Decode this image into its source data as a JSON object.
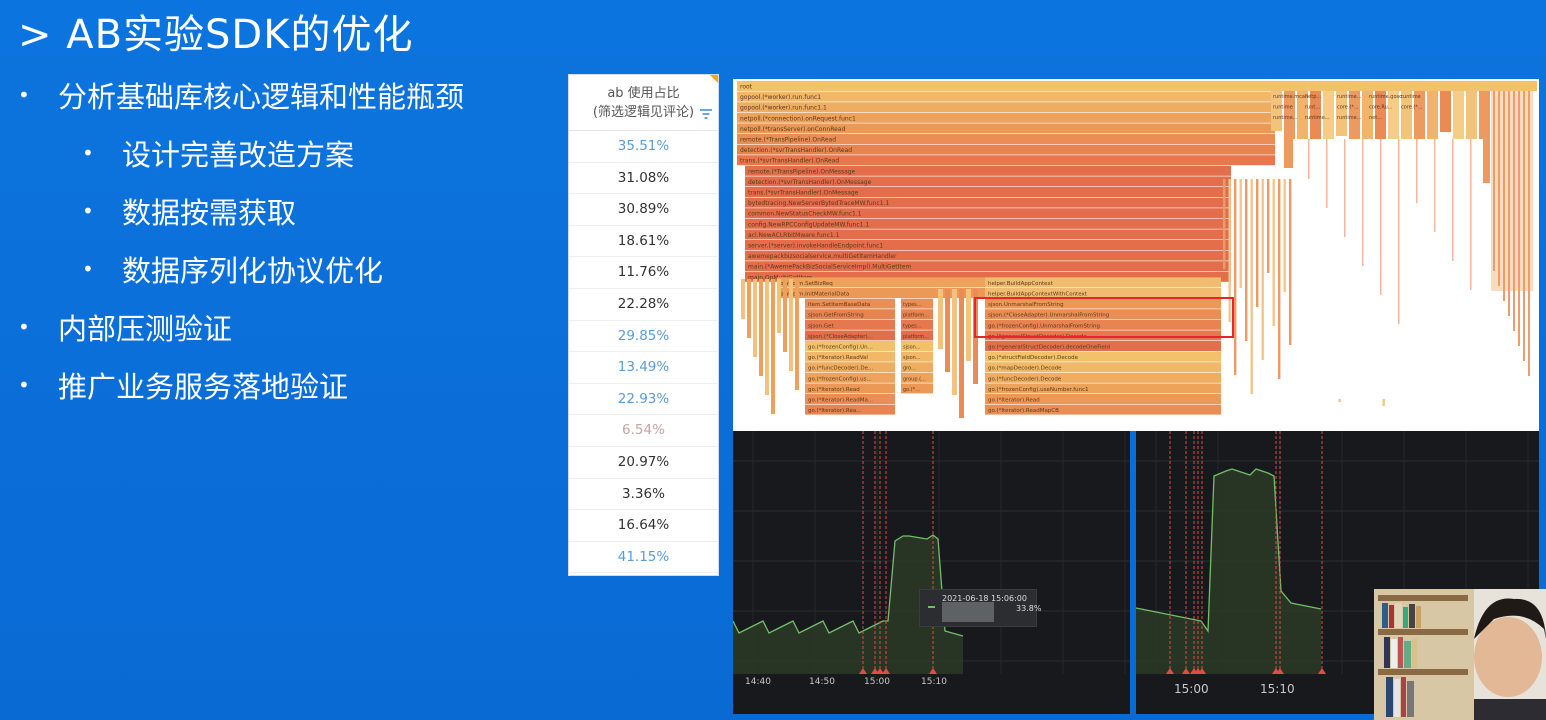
{
  "slide": {
    "title": "> AB实验SDK的优化",
    "bullets": [
      {
        "text": "分析基础库核心逻辑和性能瓶颈",
        "level": 1
      },
      {
        "text": "设计完善改造方案",
        "level": 2
      },
      {
        "text": "数据按需获取",
        "level": 2
      },
      {
        "text": "数据序列化协议优化",
        "level": 2
      },
      {
        "text": "内部压测验证",
        "level": 1
      },
      {
        "text": "推广业务服务落地验证",
        "level": 1
      }
    ],
    "bullet_marker": "•"
  },
  "pct_table": {
    "header_line1": "ab 使用占比",
    "header_line2": "(筛选逻辑见评论)",
    "rows": [
      {
        "value": "35.51%",
        "color": "blue"
      },
      {
        "value": "31.08%",
        "color": "dark"
      },
      {
        "value": "30.89%",
        "color": "dark"
      },
      {
        "value": "18.61%",
        "color": "dark"
      },
      {
        "value": "11.76%",
        "color": "dark"
      },
      {
        "value": "22.28%",
        "color": "dark"
      },
      {
        "value": "29.85%",
        "color": "blue"
      },
      {
        "value": "13.49%",
        "color": "blue"
      },
      {
        "value": "22.93%",
        "color": "blue"
      },
      {
        "value": "6.54%",
        "color": "red"
      },
      {
        "value": "20.97%",
        "color": "dark"
      },
      {
        "value": "3.36%",
        "color": "dark"
      },
      {
        "value": "16.64%",
        "color": "dark"
      },
      {
        "value": "41.15%",
        "color": "blue"
      }
    ]
  },
  "flame_graph": {
    "frames": [
      "root",
      "gopool.(*worker).run.func1",
      "gopool.(*worker).run.func1.1",
      "netpoll.(*connection).onRequest.func1",
      "netpoll.(*transServer).onConnRead",
      "remote.(*TransPipeline).OnRead",
      "detection.(*svrTransHandler).OnRead",
      "trans.(*svrTransHandler).OnRead",
      "remote.(*TransPipeline).OnMessage",
      "detection.(*svrTransHandler).OnMessage",
      "trans.(*svrTransHandler).OnMessage",
      "bytedtracing.NewServerBytedTraceMW.func1.1",
      "common.NewStatusCheckMW.func1.1",
      "config.NewRPCConfigUpdateMW.func1.1",
      "acl.NewACLRbitMware.func1.1",
      "server.(*server).invokeHandleEndpoint.func1",
      "awemepackbizsocialservice.multiGetItemHandler",
      "main.(*AwemePackBizSocialServiceImpl).MultiGetItem",
      "main.OnMultiGetItem"
    ],
    "frames_lower": [
      "platform.SetBizReq",
      "platform.InitMaterialData",
      "item.SetItemBaseData",
      "sjson.GetFromString",
      "sjson.Get",
      "sjson.(*CloseAdapter)...",
      "go.(*frozenConfig).Un...",
      "go.(*Iterator).ReadVal",
      "go.(*funcDecoder).De...",
      "go.(*frozenConfig).us...",
      "go.(*Iterator).Read",
      "go.(*Iterator).ReadMa...",
      "go.(*Iterator).Rea..."
    ],
    "frames_right": [
      "helper.BuildAppContext",
      "helper.BuildAppContextWithContext",
      "sjson.UnmarshalFromString",
      "sjson.(*CloseAdapter).UnmarshalFromString",
      "go.(*frozenConfig).UnmarshalFromString",
      "go.(*generalStructDecoder).Decode",
      "go.(*generalStructDecoder).decodeOneField",
      "go.(*structFieldDecoder).Decode",
      "go.(*mapDecoder).Decode",
      "go.(*funcDecoder).Decode",
      "go.(*frozenConfig).useNumber.func1",
      "go.(*Iterator).Read",
      "go.(*Iterator).ReadMapCB"
    ],
    "frames_mid": [
      "types...",
      "platform...",
      "types...",
      "platform...",
      "sjson...",
      "sjson...",
      "gro...",
      "group.(...",
      "go.(*..."
    ],
    "right_top_labels": [
      "runtime.mcall",
      "netp...",
      "runtime...",
      "runtime.gosc...",
      "runtime",
      "runtime",
      "runt...",
      "core.(*...",
      "core.Ru...",
      "core.(*...",
      "runtime...",
      "runtime...",
      "runtime...",
      "net..."
    ],
    "highlight_color": "#e8262a"
  },
  "chart_left": {
    "x_ticks": [
      "14:40",
      "14:50",
      "15:00",
      "15:10"
    ],
    "tooltip_time": "2021-06-18 15:06:00",
    "tooltip_value": "33.8%",
    "line_color": "#73bf69",
    "marker_color": "#e24d42"
  },
  "chart_right": {
    "x_ticks": [
      "15:00",
      "15:10"
    ],
    "line_color": "#73bf69",
    "marker_color": "#e24d42"
  }
}
